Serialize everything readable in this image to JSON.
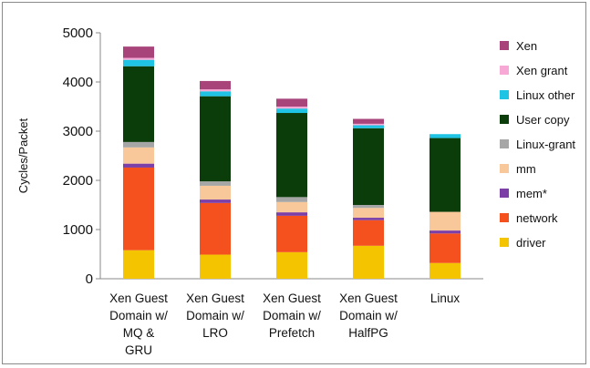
{
  "chart_data": {
    "type": "bar",
    "stacked": true,
    "ylabel": "Cycles/Packet",
    "xlabel": "",
    "ylim": [
      0,
      5000
    ],
    "yticks": [
      0,
      1000,
      2000,
      3000,
      4000,
      5000
    ],
    "grid": false,
    "legend_position": "right",
    "categories": [
      [
        "Xen Guest",
        "Domain w/",
        "MQ &",
        "GRU"
      ],
      [
        "Xen Guest",
        "Domain w/",
        "LRO"
      ],
      [
        "Xen Guest",
        "Domain w/",
        "Prefetch"
      ],
      [
        "Xen Guest",
        "Domain w/",
        "HalfPG"
      ],
      [
        "Linux"
      ]
    ],
    "series": [
      {
        "name": "driver",
        "color": "#f4c400",
        "values": [
          580,
          490,
          540,
          670,
          320
        ]
      },
      {
        "name": "network",
        "color": "#f4511e",
        "values": [
          1680,
          1050,
          740,
          520,
          600
        ]
      },
      {
        "name": "mem*",
        "color": "#7b3fa7",
        "values": [
          80,
          70,
          70,
          50,
          60
        ]
      },
      {
        "name": "mm",
        "color": "#f8c89a",
        "values": [
          330,
          280,
          210,
          200,
          380
        ]
      },
      {
        "name": "Linux-grant",
        "color": "#a6a6a6",
        "values": [
          110,
          90,
          100,
          60,
          0
        ]
      },
      {
        "name": "User copy",
        "color": "#0b3d0b",
        "values": [
          1540,
          1730,
          1710,
          1560,
          1500
        ]
      },
      {
        "name": "Linux other",
        "color": "#1fc3e3",
        "values": [
          130,
          100,
          90,
          60,
          80
        ]
      },
      {
        "name": "Xen grant",
        "color": "#f7a8d4",
        "values": [
          40,
          40,
          40,
          30,
          0
        ]
      },
      {
        "name": "Xen",
        "color": "#a8447a",
        "values": [
          230,
          170,
          160,
          100,
          0
        ]
      }
    ],
    "legend_order": [
      "Xen",
      "Xen grant",
      "Linux other",
      "User copy",
      "Linux-grant",
      "mm",
      "mem*",
      "network",
      "driver"
    ]
  }
}
